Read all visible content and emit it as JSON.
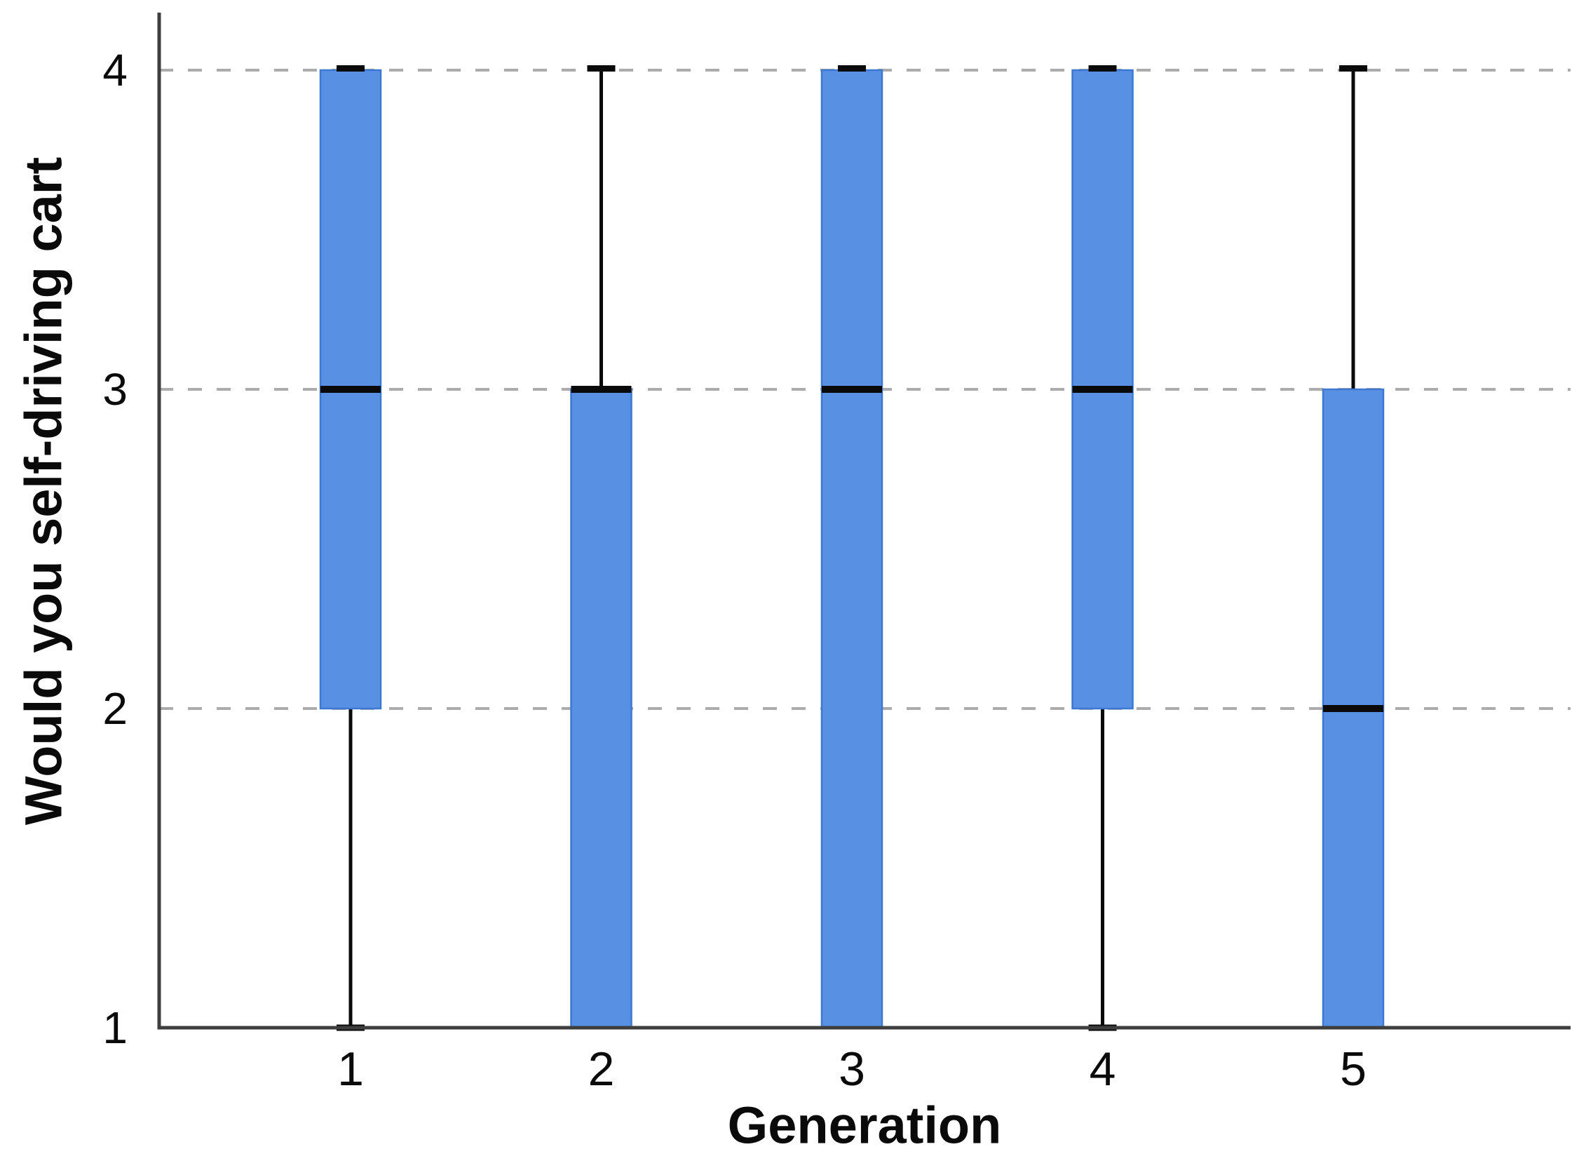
{
  "figure": {
    "background": "#ffffff"
  },
  "chart_data": {
    "type": "boxplot",
    "title": "",
    "xlabel": "Generation",
    "ylabel": "Would you self-driving cart",
    "categories": [
      "1",
      "2",
      "3",
      "4",
      "5"
    ],
    "y_ticks": [
      "1",
      "2",
      "3",
      "4"
    ],
    "ylim": [
      1,
      4
    ],
    "grid": "horizontal-dashed-at-2-3-4",
    "legend_position": "none",
    "series": [
      {
        "category": "1",
        "min": 1,
        "q1": 2,
        "median": 3,
        "q3": 4,
        "max": 4
      },
      {
        "category": "2",
        "min": 1,
        "q1": 1,
        "median": 3,
        "q3": 3,
        "max": 4
      },
      {
        "category": "3",
        "min": 1,
        "q1": 1,
        "median": 3,
        "q3": 4,
        "max": 4
      },
      {
        "category": "4",
        "min": 1,
        "q1": 2,
        "median": 3,
        "q3": 4,
        "max": 4
      },
      {
        "category": "5",
        "min": 1,
        "q1": 1,
        "median": 2,
        "q3": 3,
        "max": 4
      }
    ],
    "colors": {
      "box_fill": "#5891E4",
      "box_border": "#3D79D3",
      "median": "#0a0a0a",
      "whisker": "#0a0a0a",
      "gridline": "#ACACAC",
      "axis": "#3E3E3E",
      "text": "#0a0a0a"
    }
  }
}
